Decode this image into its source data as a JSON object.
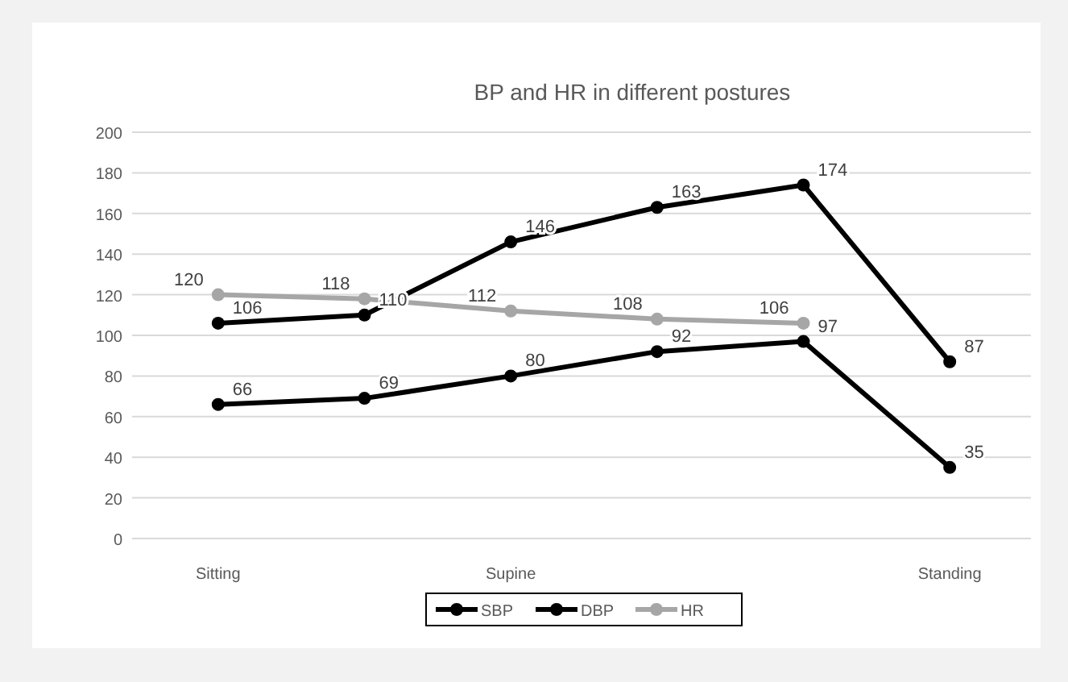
{
  "chart_data": {
    "type": "line",
    "title": "BP and HR  in different postures",
    "categories": [
      "Sitting",
      null,
      "Supine",
      null,
      null,
      "Standing"
    ],
    "series": [
      {
        "name": "SBP",
        "color": "#000000",
        "values": [
          106,
          110,
          146,
          163,
          174,
          87
        ]
      },
      {
        "name": "DBP",
        "color": "#000000",
        "values": [
          66,
          69,
          80,
          92,
          97,
          35
        ]
      },
      {
        "name": "HR",
        "color": "#a6a6a6",
        "values": [
          120,
          118,
          112,
          108,
          106,
          null
        ]
      }
    ],
    "ylim": [
      0,
      200
    ],
    "yticks": [
      0,
      20,
      40,
      60,
      80,
      100,
      120,
      140,
      160,
      180,
      200
    ],
    "grid": "y",
    "legend": "bottom",
    "marker": "circle",
    "data_labels": true
  }
}
